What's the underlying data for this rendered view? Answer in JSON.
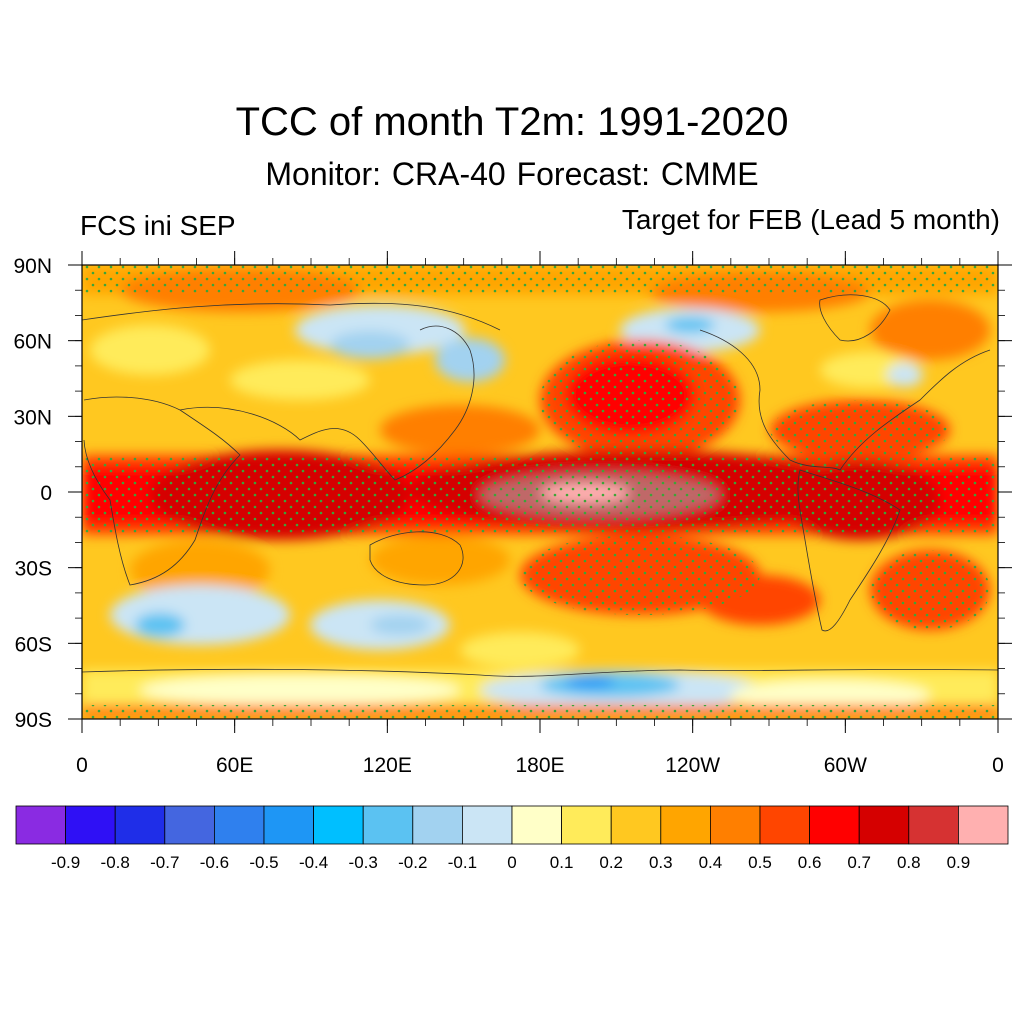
{
  "title": "TCC of month T2m: 1991-2020",
  "subtitle": "Monitor: CRA-40   Forecast: CMME",
  "left_label": "FCS ini SEP",
  "right_label": "Target for FEB (Lead 5 month)",
  "lat_labels": [
    "90N",
    "60N",
    "30N",
    "0",
    "30S",
    "60S",
    "90S"
  ],
  "lon_labels": [
    "0",
    "60E",
    "120E",
    "180E",
    "120W",
    "60W",
    "0"
  ],
  "colorbar": {
    "colors": [
      "#8a2be2",
      "#2f10f5",
      "#1f2ee8",
      "#4466e0",
      "#2f80ee",
      "#1e96f5",
      "#00bfff",
      "#5bc2f2",
      "#a2d2f0",
      "#cbe5f5",
      "#ffffc8",
      "#ffeb5a",
      "#ffc820",
      "#ffa500",
      "#ff7f00",
      "#ff4500",
      "#ff0000",
      "#d50000",
      "#d63232",
      "#ffb0b0"
    ],
    "labels": [
      "-0.9",
      "-0.8",
      "-0.7",
      "-0.6",
      "-0.5",
      "-0.4",
      "-0.3",
      "-0.2",
      "-0.1",
      "0",
      "0.1",
      "0.2",
      "0.3",
      "0.4",
      "0.5",
      "0.6",
      "0.7",
      "0.8",
      "0.9"
    ]
  }
}
